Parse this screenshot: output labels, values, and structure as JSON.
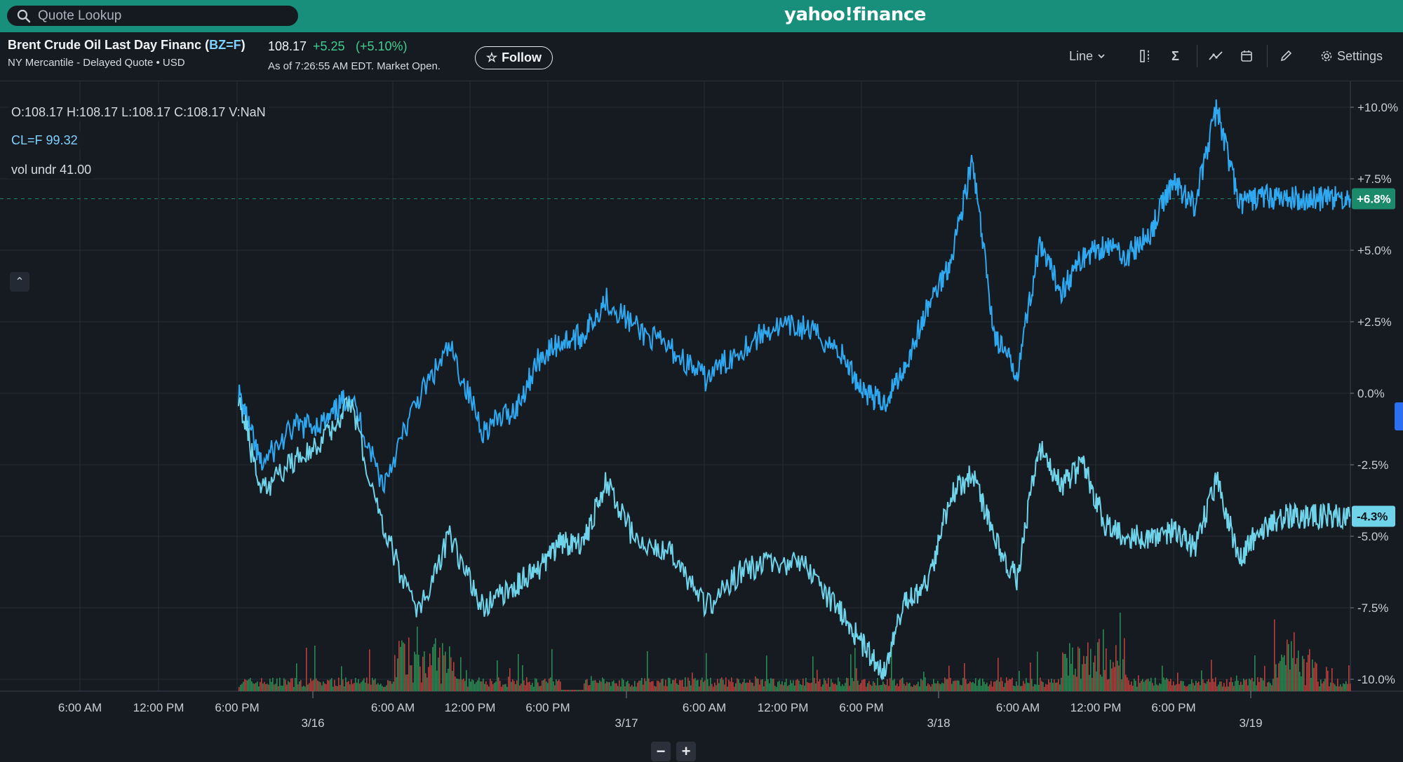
{
  "search": {
    "placeholder": "Quote Lookup"
  },
  "brand": {
    "logo_text": "yahoo!finance"
  },
  "quote": {
    "name": "Brent Crude Oil Last Day Financ",
    "symbol": "BZ=F",
    "exchange_line": "NY Mercantile - Delayed Quote • USD",
    "price": "108.17",
    "change": "+5.25",
    "change_pct": "(+5.10%)",
    "as_of": "As of 7:26:55 AM EDT. Market Open.",
    "follow_label": "Follow"
  },
  "toolbar": {
    "chart_type_label": "Line",
    "settings_label": "Settings"
  },
  "legend": {
    "ohlc": "O:108.17  H:108.17  L:108.17  C:108.17  V:NaN",
    "compare_symbol": "CL=F",
    "compare_value": "99.32",
    "vol_label": "vol undr",
    "vol_value": "41.00"
  },
  "colors": {
    "brand_green": "#188f7a",
    "series_primary": "#2ea8f0",
    "series_compare": "#6fd3ea",
    "volume_up": "#2e9d5b",
    "volume_down": "#d5453f",
    "badge_primary": "#1b8a6b",
    "badge_compare": "#6fd3ea"
  },
  "chart_data": {
    "type": "line",
    "y_axis_unit": "percent",
    "y_ticks": [
      "+10.0%",
      "+7.5%",
      "+5.0%",
      "+2.5%",
      "0.0%",
      "-2.5%",
      "-5.0%",
      "-7.5%",
      "-10.0%"
    ],
    "ylim": [
      -10,
      10
    ],
    "x_ticks": [
      "6:00 AM",
      "12:00 PM",
      "6:00 PM",
      "6:00 AM",
      "12:00 PM",
      "6:00 PM",
      "6:00 AM",
      "12:00 PM",
      "6:00 PM",
      "6:00 AM",
      "12:00 PM",
      "6:00 PM"
    ],
    "date_ticks": [
      "3/16",
      "3/17",
      "3/18",
      "3/19"
    ],
    "current_badges": [
      {
        "series": "BZ=F",
        "label": "+6.8%",
        "value": 6.8
      },
      {
        "series": "CL=F",
        "label": "-4.3%",
        "value": -4.3
      }
    ],
    "series": [
      {
        "name": "BZ=F",
        "x": [
          0,
          0.02,
          0.05,
          0.08,
          0.1,
          0.13,
          0.16,
          0.19,
          0.22,
          0.25,
          0.27,
          0.29,
          0.31,
          0.33,
          0.36,
          0.39,
          0.42,
          0.45,
          0.48,
          0.51,
          0.54,
          0.56,
          0.58,
          0.6,
          0.62,
          0.64,
          0.66,
          0.68,
          0.7,
          0.72,
          0.74,
          0.76,
          0.78,
          0.8,
          0.82,
          0.84,
          0.86,
          0.88,
          0.9,
          0.92,
          0.94,
          0.96,
          0.98,
          1.0
        ],
        "values": [
          0.0,
          -2.5,
          -1.2,
          -1.0,
          0.0,
          -3.2,
          -0.3,
          1.6,
          -1.3,
          -0.5,
          1.2,
          1.8,
          2.0,
          3.3,
          2.2,
          1.5,
          0.5,
          1.5,
          2.3,
          2.3,
          1.5,
          0.2,
          -0.4,
          1.0,
          3.0,
          4.6,
          8.1,
          2.0,
          0.7,
          5.1,
          3.6,
          4.8,
          5.2,
          4.8,
          5.6,
          7.4,
          6.6,
          10.0,
          6.6,
          6.9,
          6.8,
          6.8,
          6.8,
          6.8
        ]
      },
      {
        "name": "CL=F",
        "x": [
          0,
          0.02,
          0.05,
          0.08,
          0.1,
          0.13,
          0.16,
          0.19,
          0.22,
          0.25,
          0.27,
          0.29,
          0.31,
          0.33,
          0.36,
          0.39,
          0.42,
          0.45,
          0.48,
          0.51,
          0.54,
          0.56,
          0.58,
          0.6,
          0.62,
          0.64,
          0.66,
          0.68,
          0.7,
          0.72,
          0.74,
          0.76,
          0.78,
          0.8,
          0.82,
          0.84,
          0.86,
          0.88,
          0.9,
          0.92,
          0.94,
          0.96,
          0.98,
          1.0
        ],
        "values": [
          0.0,
          -3.5,
          -2.3,
          -1.5,
          -0.2,
          -4.6,
          -7.8,
          -5.0,
          -7.5,
          -6.7,
          -6.1,
          -5.2,
          -5.3,
          -3.1,
          -5.4,
          -5.5,
          -7.5,
          -6.3,
          -5.8,
          -6.1,
          -7.6,
          -8.7,
          -9.8,
          -7.2,
          -6.7,
          -3.6,
          -2.8,
          -5.1,
          -6.5,
          -1.8,
          -3.2,
          -2.5,
          -4.6,
          -5.0,
          -5.0,
          -4.8,
          -5.4,
          -3.0,
          -5.8,
          -4.7,
          -4.3,
          -4.3,
          -4.3,
          -4.3
        ]
      }
    ],
    "volume_present": true
  }
}
